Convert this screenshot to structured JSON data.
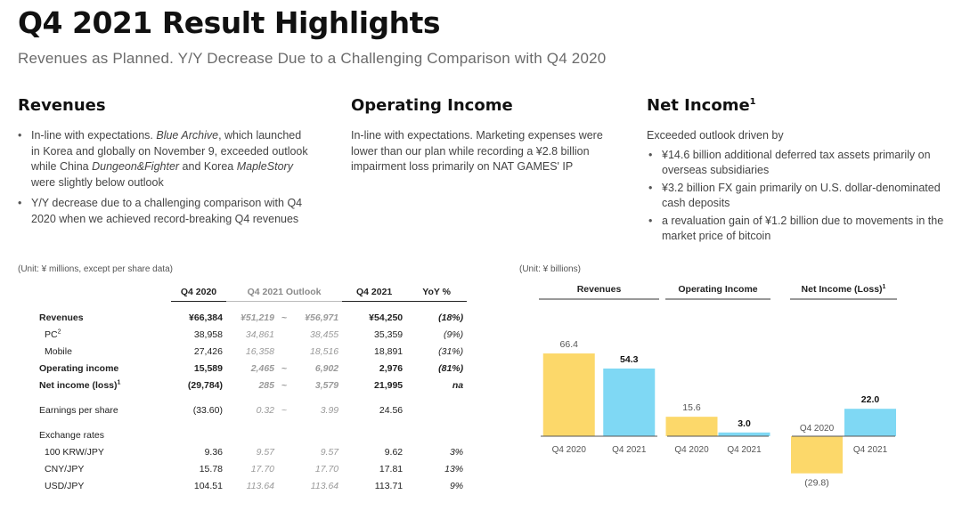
{
  "title": "Q4 2021 Result Highlights",
  "subtitle": "Revenues as Planned. Y/Y Decrease Due to a Challenging Comparison with Q4 2020",
  "sections": {
    "revenues": {
      "heading": "Revenues",
      "b1_a": "In-line with expectations. ",
      "b1_b": "Blue Archive",
      "b1_c": ", which launched in Korea and globally on November 9, exceeded outlook while China ",
      "b1_d": "Dungeon&Fighter",
      "b1_e": " and Korea ",
      "b1_f": "MapleStory",
      "b1_g": " were slightly below outlook",
      "b2": "Y/Y decrease due to a challenging comparison with Q4 2020 when we achieved record-breaking Q4 revenues"
    },
    "operating_income": {
      "heading": "Operating Income",
      "text": "In-line with expectations. Marketing expenses were lower than our plan while recording a ¥2.8 billion impairment loss primarily on NAT GAMES' IP"
    },
    "net_income": {
      "heading": "Net Income",
      "heading_sup": "1",
      "intro": "Exceeded outlook driven by",
      "bullets": [
        "¥14.6 billion additional deferred tax assets primarily on overseas subsidiaries",
        "¥3.2 billion FX gain primarily on U.S. dollar-denominated cash deposits",
        "a revaluation gain of ¥1.2 billion due to movements in the market price of bitcoin"
      ]
    }
  },
  "table": {
    "unit_note": "(Unit: ¥ millions, except per share data)",
    "headers": {
      "q4_2020": "Q4 2020",
      "outlook": "Q4 2021 Outlook",
      "q4_2021": "Q4 2021",
      "yoy": "YoY %"
    },
    "tilde": "~",
    "rows": {
      "revenues": {
        "label": "Revenues",
        "q4_2020": "¥66,384",
        "out_low": "¥51,219",
        "out_high": "¥56,971",
        "q4_2021": "¥54,250",
        "yoy": "(18%)"
      },
      "pc": {
        "label": "PC",
        "sup": "2",
        "q4_2020": "38,958",
        "out_low": "34,861",
        "out_high": "38,455",
        "q4_2021": "35,359",
        "yoy": "(9%)"
      },
      "mobile": {
        "label": "Mobile",
        "q4_2020": "27,426",
        "out_low": "16,358",
        "out_high": "18,516",
        "q4_2021": "18,891",
        "yoy": "(31%)"
      },
      "op_income": {
        "label": "Operating income",
        "q4_2020": "15,589",
        "out_low": "2,465",
        "out_high": "6,902",
        "q4_2021": "2,976",
        "yoy": "(81%)"
      },
      "net_income": {
        "label": "Net income (loss)",
        "sup": "1",
        "q4_2020": "(29,784)",
        "out_low": "285",
        "out_high": "3,579",
        "q4_2021": "21,995",
        "yoy": "na"
      },
      "eps": {
        "label": "Earnings per share",
        "q4_2020": "(33.60)",
        "out_low": "0.32",
        "out_high": "3.99",
        "q4_2021": "24.56",
        "yoy": ""
      },
      "fx_title": {
        "label": "Exchange rates"
      },
      "krw": {
        "label": "100 KRW/JPY",
        "q4_2020": "9.36",
        "out_low": "9.57",
        "out_high": "9.57",
        "q4_2021": "9.62",
        "yoy": "3%"
      },
      "cny": {
        "label": "CNY/JPY",
        "q4_2020": "15.78",
        "out_low": "17.70",
        "out_high": "17.70",
        "q4_2021": "17.81",
        "yoy": "13%"
      },
      "usd": {
        "label": "USD/JPY",
        "q4_2020": "104.51",
        "out_low": "113.64",
        "out_high": "113.64",
        "q4_2021": "113.71",
        "yoy": "9%"
      }
    }
  },
  "colors": {
    "q4_2020": "#fcd86a",
    "q4_2021": "#7fd8f4",
    "label_2021": "#111111",
    "label_2020": "#555555"
  },
  "chart_data": [
    {
      "type": "bar",
      "title": "Revenues",
      "categories": [
        "Q4 2020",
        "Q4 2021"
      ],
      "values": [
        66.4,
        54.3
      ],
      "value_labels": [
        "66.4",
        "54.3"
      ],
      "unit": "(Unit: ¥ billions)"
    },
    {
      "type": "bar",
      "title": "Operating Income",
      "categories": [
        "Q4 2020",
        "Q4 2021"
      ],
      "values": [
        15.6,
        3.0
      ],
      "value_labels": [
        "15.6",
        "3.0"
      ]
    },
    {
      "type": "bar",
      "title": "Net Income (Loss)",
      "title_sup": "1",
      "categories": [
        "Q4 2020",
        "Q4 2021"
      ],
      "values": [
        -29.8,
        22.0
      ],
      "value_labels": [
        "(29.8)",
        "22.0"
      ]
    }
  ]
}
